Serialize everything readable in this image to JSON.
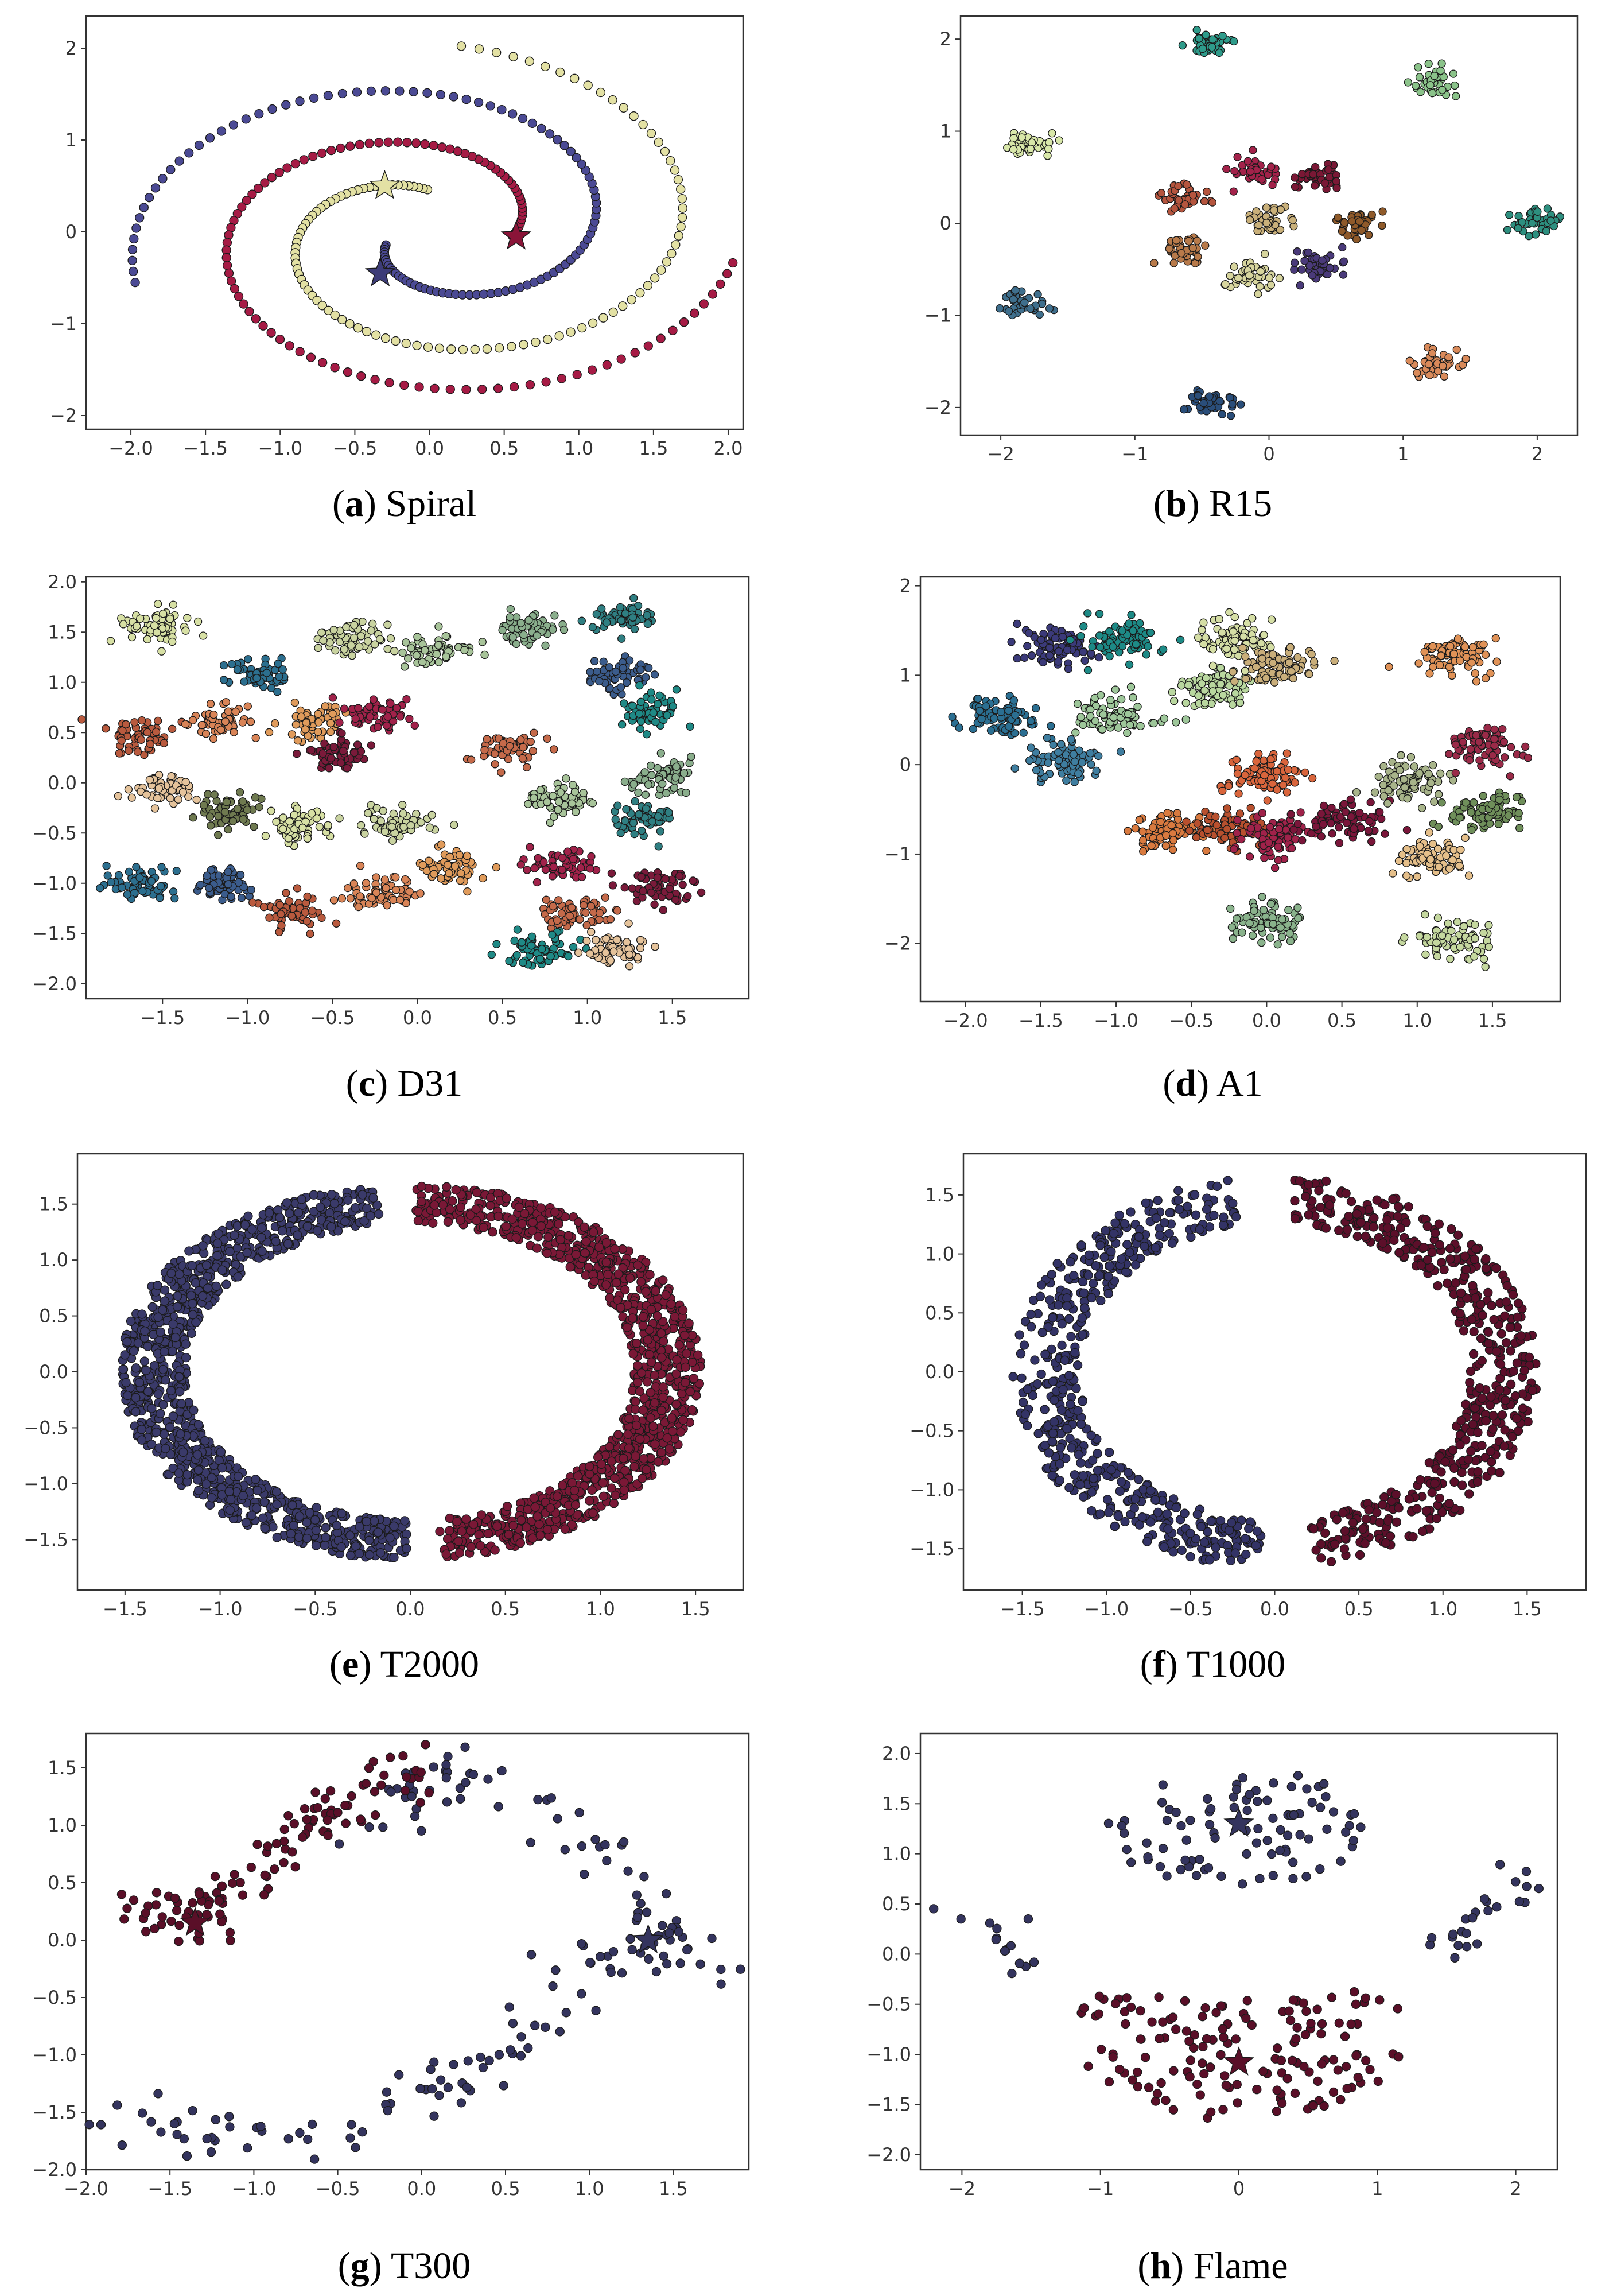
{
  "chart_data": [
    {
      "type": "scatter",
      "letter": "a",
      "name": "Spiral",
      "xlim": [
        -2.3,
        2.1
      ],
      "ylim": [
        -2.15,
        2.35
      ],
      "xticks": [
        -2.0,
        -1.5,
        -1.0,
        -0.5,
        0.0,
        0.5,
        1.0,
        1.5,
        2.0
      ],
      "yticks": [
        -2,
        -1,
        0,
        1,
        2
      ],
      "xtick_labels": [
        "−2.0",
        "−1.5",
        "−1.0",
        "−0.5",
        "0.0",
        "0.5",
        "1.0",
        "1.5",
        "2.0"
      ],
      "ytick_labels": [
        "−2",
        "−1",
        "0",
        "1",
        "2"
      ],
      "colors": [
        "#4b4a94",
        "#a61b45",
        "#e3e1a4"
      ],
      "star_colors": [
        "#3d3c78",
        "#8a1438",
        "#e3e1a4"
      ],
      "centers": [
        [
          -0.33,
          -0.45
        ],
        [
          0.58,
          -0.05
        ],
        [
          -0.3,
          0.5
        ]
      ],
      "spirals": [
        {
          "r0": 0.35,
          "r1": 2.3,
          "th0": 3.6,
          "th1": 9.7,
          "n": 104
        },
        {
          "r0": 0.6,
          "r1": 2.3,
          "th0": 6.2,
          "th1": 12.4,
          "n": 104
        },
        {
          "r0": 0.5,
          "r1": 2.3,
          "th0": 1.6,
          "th1": 7.75,
          "n": 104
        }
      ],
      "pts_per_cluster": 104
    },
    {
      "type": "scatter",
      "letter": "b",
      "name": "R15",
      "xlim": [
        -2.3,
        2.3
      ],
      "ylim": [
        -2.3,
        2.25
      ],
      "xticks": [
        -2,
        -1,
        0,
        1,
        2
      ],
      "yticks": [
        -2,
        -1,
        0,
        1,
        2
      ],
      "xtick_labels": [
        "−2",
        "−1",
        "0",
        "1",
        "2"
      ],
      "ytick_labels": [
        "−2",
        "−1",
        "0",
        "1",
        "2"
      ],
      "colors": [
        "#2e9b8a",
        "#8bc38a",
        "#d8e7a9",
        "#2d8f7f",
        "#3f6f8d",
        "#2a4e7a",
        "#d98a5a",
        "#b5553e",
        "#a3224a",
        "#7a1835",
        "#c9b07a",
        "#8f5a2a",
        "#b87a4a",
        "#d7d59e",
        "#4a3a7a"
      ],
      "centers": [
        [
          -0.43,
          1.95
        ],
        [
          1.23,
          1.53
        ],
        [
          -1.78,
          0.85
        ],
        [
          2.0,
          0.0
        ],
        [
          -1.8,
          -0.87
        ],
        [
          -0.43,
          -1.93
        ],
        [
          1.25,
          -1.52
        ],
        [
          -0.62,
          0.27
        ],
        [
          -0.12,
          0.55
        ],
        [
          0.37,
          0.48
        ],
        [
          0.0,
          0.03
        ],
        [
          0.63,
          -0.02
        ],
        [
          -0.6,
          -0.28
        ],
        [
          -0.15,
          -0.58
        ],
        [
          0.38,
          -0.45
        ]
      ],
      "spread": 0.09,
      "pts_per_cluster": 40
    },
    {
      "type": "scatter",
      "letter": "c",
      "name": "D31",
      "xlim": [
        -1.95,
        1.95
      ],
      "ylim": [
        -2.15,
        2.05
      ],
      "xticks": [
        -1.5,
        -1.0,
        -0.5,
        0.0,
        0.5,
        1.0,
        1.5
      ],
      "yticks": [
        -2.0,
        -1.5,
        -1.0,
        -0.5,
        0.0,
        0.5,
        1.0,
        1.5,
        2.0
      ],
      "xtick_labels": [
        "−1.5",
        "−1.0",
        "−0.5",
        "0.0",
        "0.5",
        "1.0",
        "1.5"
      ],
      "ytick_labels": [
        "−2.0",
        "−1.5",
        "−1.0",
        "−0.5",
        "0.0",
        "0.5",
        "1.0",
        "1.5",
        "2.0"
      ],
      "colors": [
        "#d7e0a4",
        "#c9d3a0",
        "#a8c49a",
        "#8aae8c",
        "#2f7f82",
        "#2c6f8f",
        "#3b5c8c",
        "#b95a3e",
        "#d98457",
        "#e09b5b",
        "#a1224a",
        "#7a1a3a",
        "#c56a4a",
        "#1f8a86",
        "#e5c39b",
        "#6f7a50"
      ],
      "centers": [
        [
          -1.55,
          1.55
        ],
        [
          -0.4,
          1.43
        ],
        [
          0.1,
          1.3
        ],
        [
          0.65,
          1.55
        ],
        [
          1.2,
          1.63
        ],
        [
          -0.93,
          1.07
        ],
        [
          1.18,
          1.07
        ],
        [
          -1.65,
          0.48
        ],
        [
          -1.15,
          0.62
        ],
        [
          -0.62,
          0.62
        ],
        [
          -0.25,
          0.68
        ],
        [
          -0.45,
          0.27
        ],
        [
          0.53,
          0.35
        ],
        [
          1.38,
          0.72
        ],
        [
          -1.5,
          -0.08
        ],
        [
          -1.1,
          -0.3
        ],
        [
          -0.7,
          -0.42
        ],
        [
          -0.12,
          -0.4
        ],
        [
          0.85,
          -0.15
        ],
        [
          1.45,
          0.05
        ],
        [
          1.32,
          -0.35
        ],
        [
          -1.65,
          -1.02
        ],
        [
          -1.15,
          -1.02
        ],
        [
          -0.75,
          -1.27
        ],
        [
          -0.22,
          -1.1
        ],
        [
          0.2,
          -0.85
        ],
        [
          0.85,
          -0.8
        ],
        [
          1.42,
          -1.02
        ],
        [
          0.92,
          -1.3
        ],
        [
          0.7,
          -1.68
        ],
        [
          1.15,
          -1.65
        ]
      ],
      "spread": 0.1,
      "pts_per_cluster": 60
    },
    {
      "type": "scatter",
      "letter": "d",
      "name": "A1",
      "xlim": [
        -2.3,
        1.95
      ],
      "ylim": [
        -2.65,
        2.1
      ],
      "xticks": [
        -2.0,
        -1.5,
        -1.0,
        -0.5,
        0.0,
        0.5,
        1.0,
        1.5
      ],
      "yticks": [
        -2,
        -1,
        0,
        1,
        2
      ],
      "xtick_labels": [
        "−2.0",
        "−1.5",
        "−1.0",
        "−0.5",
        "0.0",
        "0.5",
        "1.0",
        "1.5"
      ],
      "ytick_labels": [
        "−2",
        "−1",
        "0",
        "1",
        "2"
      ],
      "colors": [
        "#3b3a7a",
        "#1d8a86",
        "#2b6f92",
        "#3f7ea0",
        "#9ec79a",
        "#b9d79f",
        "#d5dea5",
        "#c9ae7a",
        "#e09257",
        "#d97a3f",
        "#b8502e",
        "#d9653c",
        "#a0224a",
        "#7a163a",
        "#8ab38c",
        "#c5d89f",
        "#a8b48a",
        "#e5bf8a",
        "#9a2a48",
        "#6f8f5a"
      ],
      "centers": [
        [
          -1.4,
          1.3
        ],
        [
          -0.95,
          1.4
        ],
        [
          -1.75,
          0.55
        ],
        [
          -1.35,
          0.05
        ],
        [
          -1.0,
          0.55
        ],
        [
          -0.35,
          0.85
        ],
        [
          -0.2,
          1.4
        ],
        [
          0.05,
          1.1
        ],
        [
          1.3,
          1.2
        ],
        [
          -0.65,
          -0.75
        ],
        [
          -0.25,
          -0.7
        ],
        [
          0.0,
          -0.1
        ],
        [
          0.05,
          -0.8
        ],
        [
          0.5,
          -0.65
        ],
        [
          0.0,
          -1.75
        ],
        [
          1.25,
          -1.95
        ],
        [
          0.95,
          -0.2
        ],
        [
          1.1,
          -1.05
        ],
        [
          1.45,
          0.2
        ],
        [
          1.45,
          -0.55
        ]
      ],
      "spread": 0.13,
      "pts_per_cluster": 80
    },
    {
      "type": "scatter",
      "letter": "e",
      "name": "T2000",
      "xlim": [
        -1.75,
        1.75
      ],
      "ylim": [
        -1.95,
        1.95
      ],
      "xticks": [
        -1.5,
        -1.0,
        -0.5,
        0.0,
        0.5,
        1.0,
        1.5
      ],
      "yticks": [
        -1.5,
        -1.0,
        -0.5,
        0.0,
        0.5,
        1.0,
        1.5
      ],
      "xtick_labels": [
        "−1.5",
        "−1.0",
        "−0.5",
        "0.0",
        "0.5",
        "1.0",
        "1.5"
      ],
      "ytick_labels": [
        "−1.5",
        "−1.0",
        "−0.5",
        "0.0",
        "0.5",
        "1.0",
        "1.5"
      ],
      "colors": [
        "#3a3a6a",
        "#7a1836"
      ],
      "arcs": [
        {
          "cx": 0.0,
          "cy": 0.0,
          "rx": 1.3,
          "ry": 1.45,
          "th0": 1.7,
          "th1": 4.7,
          "w": 0.35,
          "n": 1000
        },
        {
          "cx": 0.0,
          "cy": 0.0,
          "rx": 1.3,
          "ry": 1.45,
          "th0": -1.45,
          "th1": 1.55,
          "w": 0.35,
          "n": 1000
        }
      ]
    },
    {
      "type": "scatter",
      "letter": "f",
      "name": "T1000",
      "xlim": [
        -1.85,
        1.85
      ],
      "ylim": [
        -1.85,
        1.85
      ],
      "xticks": [
        -1.5,
        -1.0,
        -0.5,
        0.0,
        0.5,
        1.0,
        1.5
      ],
      "yticks": [
        -1.5,
        -1.0,
        -0.5,
        0.0,
        0.5,
        1.0,
        1.5
      ],
      "xtick_labels": [
        "−1.5",
        "−1.0",
        "−0.5",
        "0.0",
        "0.5",
        "1.0",
        "1.5"
      ],
      "ytick_labels": [
        "−1.5",
        "−1.0",
        "−0.5",
        "0.0",
        "0.5",
        "1.0",
        "1.5"
      ],
      "colors": [
        "#333366",
        "#5c0f2a"
      ],
      "arcs": [
        {
          "cx": 0.0,
          "cy": 0.0,
          "rx": 1.3,
          "ry": 1.4,
          "th0": 1.75,
          "th1": 4.65,
          "w": 0.4,
          "n": 500
        },
        {
          "cx": 0.0,
          "cy": 0.0,
          "rx": 1.3,
          "ry": 1.4,
          "th0": -1.4,
          "th1": 1.5,
          "w": 0.4,
          "n": 500
        }
      ]
    },
    {
      "type": "scatter",
      "letter": "g",
      "name": "T300",
      "xlim": [
        -2.0,
        1.95
      ],
      "ylim": [
        -2.0,
        1.8
      ],
      "xticks": [
        -2.0,
        -1.5,
        -1.0,
        -0.5,
        0.0,
        0.5,
        1.0,
        1.5
      ],
      "yticks": [
        -2.0,
        -1.5,
        -1.0,
        -0.5,
        0.0,
        0.5,
        1.0,
        1.5
      ],
      "xtick_labels": [
        "−2.0",
        "−1.5",
        "−1.0",
        "−0.5",
        "0.0",
        "0.5",
        "1.0",
        "1.5"
      ],
      "ytick_labels": [
        "−2.0",
        "−1.5",
        "−1.0",
        "−0.5",
        "0.0",
        "0.5",
        "1.0",
        "1.5"
      ],
      "colors": [
        "#34345e",
        "#5a0f28"
      ],
      "centers": [
        [
          1.35,
          0.0
        ],
        [
          -1.35,
          0.15
        ]
      ],
      "paths": [
        {
          "pts": [
            [
              -1.8,
              -1.55
            ],
            [
              -1.2,
              -1.7
            ],
            [
              -0.5,
              -1.6
            ],
            [
              0.2,
              -1.3
            ],
            [
              0.7,
              -0.7
            ],
            [
              1.1,
              -0.2
            ],
            [
              1.4,
              0.0
            ],
            [
              1.7,
              -0.15
            ],
            [
              1.2,
              0.6
            ],
            [
              0.5,
              1.3
            ],
            [
              0.0,
              1.5
            ],
            [
              -0.2,
              1.0
            ]
          ],
          "w": 0.25,
          "n": 170
        },
        {
          "pts": [
            [
              -1.7,
              0.3
            ],
            [
              -1.35,
              0.15
            ],
            [
              -1.1,
              0.45
            ],
            [
              -0.75,
              0.9
            ],
            [
              -0.4,
              1.2
            ],
            [
              -0.1,
              1.5
            ]
          ],
          "w": 0.22,
          "n": 120
        }
      ]
    },
    {
      "type": "scatter",
      "letter": "h",
      "name": "Flame",
      "xlim": [
        -2.3,
        2.3
      ],
      "ylim": [
        -2.15,
        2.2
      ],
      "xticks": [
        -2,
        -1,
        0,
        1,
        2
      ],
      "yticks": [
        -2.0,
        -1.5,
        -1.0,
        -0.5,
        0.0,
        0.5,
        1.0,
        1.5,
        2.0
      ],
      "xtick_labels": [
        "−2",
        "−1",
        "0",
        "1",
        "2"
      ],
      "ytick_labels": [
        "−2.0",
        "−1.5",
        "−1.0",
        "−0.5",
        "0.0",
        "0.5",
        "1.0",
        "1.5",
        "2.0"
      ],
      "colors": [
        "#34345e",
        "#5a0f28"
      ],
      "centers": [
        [
          0.0,
          1.3
        ],
        [
          0.0,
          -1.08
        ]
      ],
      "blobs": [
        {
          "cx": 0.0,
          "cy": 1.25,
          "sx": 0.95,
          "sy": 0.6,
          "n": 90
        },
        {
          "cx": 0.0,
          "cy": -1.05,
          "sx": 1.2,
          "sy": 0.6,
          "n": 150
        }
      ],
      "wings": [
        {
          "x0": -2.1,
          "y0": 0.4,
          "x1": -1.5,
          "y1": -0.2,
          "n": 14
        },
        {
          "x0": 1.4,
          "y0": 0.0,
          "x1": 2.15,
          "y1": 0.75,
          "n": 24
        }
      ]
    }
  ]
}
